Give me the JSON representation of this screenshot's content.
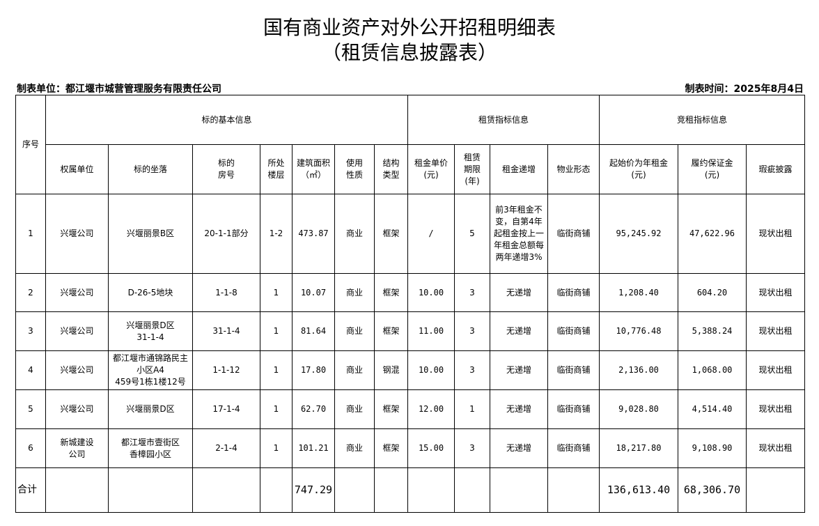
{
  "title": "国有商业资产对外公开招租明细表",
  "subtitle": "（租赁信息披露表）",
  "unit": "制表单位：都江堰市城营管理服务有限责任公司",
  "date": "制表时间：2025年8月4日",
  "headers": {
    "seq": "序号",
    "basic": "标的基本信息",
    "lease": "租赁指标信息",
    "bid": "竞租指标信息",
    "cols": [
      "权属单位",
      "标的坐落",
      "标的\n房号",
      "所处\n楼层",
      "建筑面积\n（㎡）",
      "使用\n性质",
      "结构\n类型",
      "租金单价\n(元)",
      "租赁\n期限\n(年)",
      "租金递增",
      "物业形态",
      "起始价为年租金\n(元)",
      "履约保证金\n(元)",
      "瑕疵披露"
    ]
  },
  "rows": [
    [
      "1",
      "兴堰公司",
      "兴堰丽景B区",
      "20-1-1部分",
      "1-2",
      "473.87",
      "商业",
      "框架",
      "/",
      "5",
      "前3年租金不变，自第4年起租金按上一年租金总额每两年递增3%",
      "临街商铺",
      "95,245.92",
      "47,622.96",
      "现状出租"
    ],
    [
      "2",
      "兴堰公司",
      "D-26-5地块",
      "1-1-8",
      "1",
      "10.07",
      "商业",
      "框架",
      "10.00",
      "3",
      "无递增",
      "临街商铺",
      "1,208.40",
      "604.20",
      "现状出租"
    ],
    [
      "3",
      "兴堰公司",
      "兴堰丽景D区\n31-1-4",
      "31-1-4",
      "1",
      "81.64",
      "商业",
      "框架",
      "11.00",
      "3",
      "无递增",
      "临街商铺",
      "10,776.48",
      "5,388.24",
      "现状出租"
    ],
    [
      "4",
      "兴堰公司",
      "都江堰市通锦路民主小区A4\n459号1栋1楼12号",
      "1-1-12",
      "1",
      "17.80",
      "商业",
      "钢混",
      "10.00",
      "3",
      "无递增",
      "临街商铺",
      "2,136.00",
      "1,068.00",
      "现状出租"
    ],
    [
      "5",
      "兴堰公司",
      "兴堰丽景D区",
      "17-1-4",
      "1",
      "62.70",
      "商业",
      "框架",
      "12.00",
      "1",
      "无递增",
      "临街商铺",
      "9,028.80",
      "4,514.40",
      "现状出租"
    ],
    [
      "6",
      "新城建设\n公司",
      "都江堰市壹街区\n香樟园小区",
      "2-1-4",
      "1",
      "101.21",
      "商业",
      "框架",
      "15.00",
      "3",
      "无递增",
      "临街商铺",
      "18,217.80",
      "9,108.90",
      "现状出租"
    ]
  ],
  "total": {
    "label": "合计",
    "area": "747.29",
    "start_price": "136,613.40",
    "deposit": "68,306.70"
  }
}
